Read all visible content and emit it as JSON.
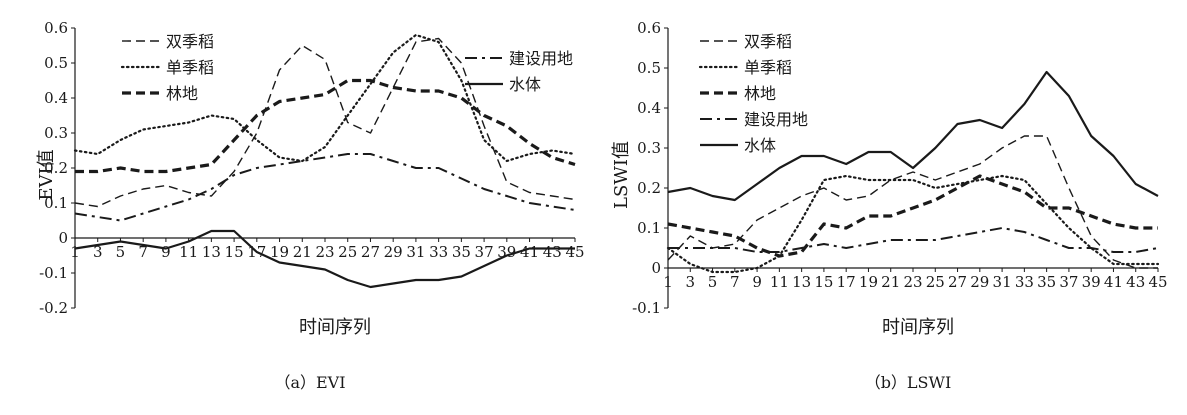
{
  "chart_data": [
    {
      "panel_id": "evi",
      "type": "line",
      "caption": "（a）EVI",
      "xlabel": "时间序列",
      "ylabel": "EVI值",
      "ylim": [
        -0.2,
        0.6
      ],
      "yticks": [
        "0.6",
        "0.5",
        "0.4",
        "0.3",
        "0.2",
        "0.1",
        "0",
        "-0.1",
        "-0.2"
      ],
      "x": [
        1,
        3,
        5,
        7,
        9,
        11,
        13,
        15,
        17,
        19,
        21,
        23,
        25,
        27,
        29,
        31,
        33,
        35,
        37,
        39,
        41,
        43,
        45
      ],
      "legend": [
        {
          "label": "双季稻",
          "style": "dashed"
        },
        {
          "label": "单季稻",
          "style": "dotted"
        },
        {
          "label": "林地",
          "style": "bold-dashed"
        },
        {
          "label": "建设用地",
          "style": "dash-dot"
        },
        {
          "label": "水体",
          "style": "solid"
        }
      ],
      "series": [
        {
          "name": "双季稻",
          "values": [
            0.1,
            0.09,
            0.12,
            0.14,
            0.15,
            0.13,
            0.12,
            0.19,
            0.3,
            0.48,
            0.55,
            0.51,
            0.33,
            0.3,
            0.43,
            0.56,
            0.57,
            0.5,
            0.32,
            0.16,
            0.13,
            0.12,
            0.11
          ]
        },
        {
          "name": "单季稻",
          "values": [
            0.25,
            0.24,
            0.28,
            0.31,
            0.32,
            0.33,
            0.35,
            0.34,
            0.28,
            0.23,
            0.22,
            0.26,
            0.35,
            0.44,
            0.53,
            0.58,
            0.56,
            0.45,
            0.28,
            0.22,
            0.24,
            0.25,
            0.24
          ]
        },
        {
          "name": "林地",
          "values": [
            0.19,
            0.19,
            0.2,
            0.19,
            0.19,
            0.2,
            0.21,
            0.28,
            0.35,
            0.39,
            0.4,
            0.41,
            0.45,
            0.45,
            0.43,
            0.42,
            0.42,
            0.4,
            0.35,
            0.32,
            0.27,
            0.23,
            0.21
          ]
        },
        {
          "name": "建设用地",
          "values": [
            0.07,
            0.06,
            0.05,
            0.07,
            0.09,
            0.11,
            0.14,
            0.18,
            0.2,
            0.21,
            0.22,
            0.23,
            0.24,
            0.24,
            0.22,
            0.2,
            0.2,
            0.17,
            0.14,
            0.12,
            0.1,
            0.09,
            0.08
          ]
        },
        {
          "name": "水体",
          "values": [
            -0.03,
            -0.02,
            -0.01,
            -0.02,
            -0.03,
            -0.01,
            0.02,
            0.02,
            -0.04,
            -0.07,
            -0.08,
            -0.09,
            -0.12,
            -0.14,
            -0.13,
            -0.12,
            -0.12,
            -0.11,
            -0.08,
            -0.05,
            -0.03,
            -0.03,
            -0.03
          ]
        }
      ]
    },
    {
      "panel_id": "lswi",
      "type": "line",
      "caption": "（b）LSWI",
      "xlabel": "时间序列",
      "ylabel": "LSWI值",
      "ylim": [
        -0.1,
        0.6
      ],
      "yticks": [
        "0.6",
        "0.5",
        "0.4",
        "0.3",
        "0.2",
        "0.1",
        "0",
        "-0.1"
      ],
      "x": [
        1,
        3,
        5,
        7,
        9,
        11,
        13,
        15,
        17,
        19,
        21,
        23,
        25,
        27,
        29,
        31,
        33,
        35,
        37,
        39,
        41,
        43,
        45
      ],
      "legend": [
        {
          "label": "双季稻",
          "style": "dashed"
        },
        {
          "label": "单季稻",
          "style": "dotted"
        },
        {
          "label": "林地",
          "style": "bold-dashed"
        },
        {
          "label": "建设用地",
          "style": "dash-dot"
        },
        {
          "label": "水体",
          "style": "solid"
        }
      ],
      "series": [
        {
          "name": "双季稻",
          "values": [
            0.02,
            0.08,
            0.05,
            0.06,
            0.12,
            0.15,
            0.18,
            0.2,
            0.17,
            0.18,
            0.22,
            0.24,
            0.22,
            0.24,
            0.26,
            0.3,
            0.33,
            0.33,
            0.2,
            0.08,
            0.02,
            0.0,
            0.0
          ]
        },
        {
          "name": "单季稻",
          "values": [
            0.05,
            0.01,
            -0.01,
            -0.01,
            0.0,
            0.03,
            0.12,
            0.22,
            0.23,
            0.22,
            0.22,
            0.22,
            0.2,
            0.21,
            0.22,
            0.23,
            0.22,
            0.16,
            0.1,
            0.05,
            0.01,
            0.01,
            0.01
          ]
        },
        {
          "name": "林地",
          "values": [
            0.11,
            0.1,
            0.09,
            0.08,
            0.05,
            0.03,
            0.04,
            0.11,
            0.1,
            0.13,
            0.13,
            0.15,
            0.17,
            0.2,
            0.23,
            0.21,
            0.19,
            0.15,
            0.15,
            0.13,
            0.11,
            0.1,
            0.1
          ]
        },
        {
          "name": "建设用地",
          "values": [
            0.05,
            0.05,
            0.05,
            0.05,
            0.04,
            0.04,
            0.05,
            0.06,
            0.05,
            0.06,
            0.07,
            0.07,
            0.07,
            0.08,
            0.09,
            0.1,
            0.09,
            0.07,
            0.05,
            0.05,
            0.04,
            0.04,
            0.05
          ]
        },
        {
          "name": "水体",
          "values": [
            0.19,
            0.2,
            0.18,
            0.17,
            0.21,
            0.25,
            0.28,
            0.28,
            0.26,
            0.29,
            0.29,
            0.25,
            0.3,
            0.36,
            0.37,
            0.35,
            0.41,
            0.49,
            0.43,
            0.33,
            0.28,
            0.21,
            0.18
          ]
        }
      ]
    }
  ]
}
